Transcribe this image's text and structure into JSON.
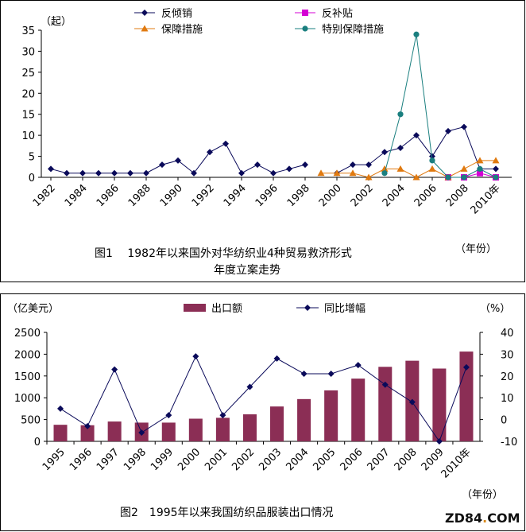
{
  "chart_data": [
    {
      "type": "line",
      "title": "图1　1982年以来国外对华纺织业4种贸易救济形式年度立案走势",
      "caption_line1": "图1　 1982年以来国外对华纺织业4种贸易救济形式",
      "caption_line2": "年度立案走势",
      "ylabel": "（起）",
      "xlabel": "（年份）",
      "ylim": [
        0,
        35
      ],
      "yticks": [
        "0",
        "5",
        "10",
        "15",
        "20",
        "25",
        "30",
        "35"
      ],
      "xticks": [
        "1982",
        "1984",
        "1986",
        "1988",
        "1990",
        "1992",
        "1994",
        "1996",
        "1998",
        "2000",
        "2002",
        "2004",
        "2006",
        "2008",
        "2010年"
      ],
      "series": [
        {
          "name": "反倾销",
          "color": "#0a0a5a",
          "marker": "diamond",
          "x": [
            1982,
            1983,
            1984,
            1985,
            1986,
            1987,
            1988,
            1989,
            1990,
            1991,
            1992,
            1993,
            1994,
            1995,
            1996,
            1997,
            1998,
            2000,
            2001,
            2002,
            2003,
            2004,
            2005,
            2006,
            2007,
            2008,
            2009,
            2010
          ],
          "values": [
            2,
            1,
            1,
            1,
            1,
            1,
            1,
            3,
            4,
            1,
            6,
            8,
            1,
            3,
            1,
            2,
            3,
            1,
            3,
            3,
            6,
            7,
            10,
            5,
            11,
            12,
            2,
            2
          ]
        },
        {
          "name": "反补贴",
          "color": "#d400d4",
          "marker": "square",
          "x": [
            2007,
            2008,
            2009,
            2010
          ],
          "values": [
            0,
            0,
            1,
            0
          ]
        },
        {
          "name": "保障措施",
          "color": "#e07a10",
          "marker": "triangle",
          "x": [
            1999,
            2000,
            2001,
            2002,
            2003,
            2004,
            2005,
            2006,
            2007,
            2008,
            2009,
            2010
          ],
          "values": [
            1,
            1,
            1,
            0,
            2,
            2,
            0,
            2,
            0,
            2,
            4,
            4
          ]
        },
        {
          "name": "特别保障措施",
          "color": "#1a7f7f",
          "marker": "circle",
          "x": [
            2003,
            2004,
            2005,
            2006,
            2007,
            2008,
            2009,
            2010
          ],
          "values": [
            1,
            15,
            34,
            4,
            0,
            0,
            2,
            0
          ]
        }
      ]
    },
    {
      "type": "bar+line",
      "title": "图2　1995年以来我国纺织品服装出口情况",
      "caption": "图2　1995年以来我国纺织品服装出口情况",
      "ylabel_left": "（亿美元）",
      "ylabel_right": "（%）",
      "xlabel": "（年份）",
      "ylim_left": [
        0,
        2500
      ],
      "ylim_right": [
        -10,
        40
      ],
      "yticks_left": [
        "0",
        "500",
        "1000",
        "1500",
        "2000",
        "2500"
      ],
      "yticks_right": [
        "-10",
        "0",
        "10",
        "20",
        "30",
        "40"
      ],
      "categories": [
        "1995",
        "1996",
        "1997",
        "1998",
        "1999",
        "2000",
        "2001",
        "2002",
        "2003",
        "2004",
        "2005",
        "2006",
        "2007",
        "2008",
        "2009",
        "2010年"
      ],
      "series": [
        {
          "name": "出口额",
          "color": "#8b2e55",
          "axis": "left",
          "values": [
            380,
            370,
            455,
            430,
            430,
            520,
            540,
            620,
            800,
            970,
            1170,
            1440,
            1710,
            1850,
            1670,
            2060
          ]
        },
        {
          "name": "同比增幅",
          "color": "#0a0a5a",
          "axis": "right",
          "values": [
            5,
            -3,
            23,
            -6,
            2,
            29,
            2,
            15,
            28,
            21,
            21,
            25,
            16,
            8,
            -10,
            24
          ]
        }
      ]
    }
  ],
  "watermark": {
    "text_a": "ZD84",
    "text_dot": ".",
    "text_b": "COM"
  }
}
